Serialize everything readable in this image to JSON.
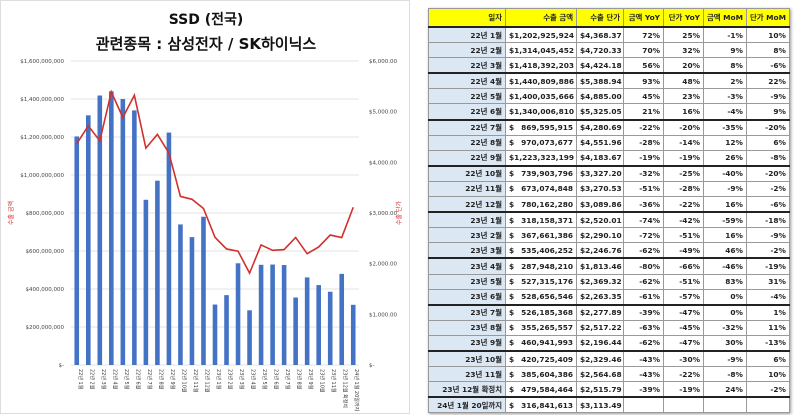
{
  "chart_data": {
    "type": "bar+line",
    "title": "SSD (전국)",
    "subtitle": "관련종목 : 삼성전자 / SK하이닉스",
    "ylabel_left": "수출 금액",
    "ylabel_right": "수출 단가",
    "ylim_left": [
      0,
      1600000000
    ],
    "ylim_right": [
      0,
      6000
    ],
    "left_ticks": [
      "$1,600,000,000",
      "$1,400,000,000",
      "$1,200,000,000",
      "$1,000,000,000",
      "$800,000,000",
      "$600,000,000",
      "$400,000,000",
      "$200,000,000",
      "$-"
    ],
    "right_ticks": [
      "$6,000.00",
      "$5,000.00",
      "$4,000.00",
      "$3,000.00",
      "$2,000.00",
      "$1,000.00",
      "$-"
    ],
    "categories": [
      "22년 1월",
      "22년 2월",
      "22년 3월",
      "22년 4월",
      "22년 5월",
      "22년 6월",
      "22년 7월",
      "22년 8월",
      "22년 9월",
      "22년 10월",
      "22년 11월",
      "22년 12월",
      "23년 1월",
      "23년 2월",
      "23년 3월",
      "23년 4월",
      "23년 5월",
      "23년 6월",
      "23년 7월",
      "23년 8월",
      "23년 9월",
      "23년 10월",
      "23년 11월",
      "23년 12월 확정치",
      "24년 1월 20일까지"
    ],
    "series": [
      {
        "name": "수출 금액",
        "type": "bar",
        "color": "#4472c4",
        "values": [
          1202925924,
          1314045452,
          1418392203,
          1440809886,
          1400035666,
          1340006810,
          869595915,
          970073677,
          1223323199,
          739903796,
          673074848,
          780162280,
          318158371,
          367661386,
          535406252,
          287948210,
          527315176,
          528656546,
          526185368,
          355265557,
          460941993,
          420725409,
          385604386,
          479584464,
          316841613
        ]
      },
      {
        "name": "수출 단가",
        "type": "line",
        "color": "#d0312d",
        "values": [
          4368.37,
          4720.33,
          4424.18,
          5388.94,
          4885.0,
          5325.05,
          4280.69,
          4551.96,
          4183.67,
          3327.2,
          3270.53,
          3089.86,
          2520.01,
          2290.1,
          2246.76,
          1813.46,
          2369.32,
          2263.35,
          2277.89,
          2517.22,
          2196.44,
          2329.46,
          2564.68,
          2515.79,
          3113.49
        ]
      }
    ]
  },
  "table": {
    "headers": [
      "일자",
      "수출 금액",
      "수출 단가",
      "금액 YoY",
      "단가 YoY",
      "금액 MoM",
      "단가 MoM"
    ],
    "rows": [
      [
        "22년 1월",
        "1,202,925,924",
        "4,368.37",
        "72%",
        "25%",
        "-1%",
        "10%"
      ],
      [
        "22년 2월",
        "1,314,045,452",
        "4,720.33",
        "70%",
        "32%",
        "9%",
        "8%"
      ],
      [
        "22년 3월",
        "1,418,392,203",
        "4,424.18",
        "56%",
        "20%",
        "8%",
        "-6%"
      ],
      [
        "22년 4월",
        "1,440,809,886",
        "5,388.94",
        "93%",
        "48%",
        "2%",
        "22%"
      ],
      [
        "22년 5월",
        "1,400,035,666",
        "4,885.00",
        "45%",
        "23%",
        "-3%",
        "-9%"
      ],
      [
        "22년 6월",
        "1,340,006,810",
        "5,325.05",
        "21%",
        "16%",
        "-4%",
        "9%"
      ],
      [
        "22년 7월",
        "869,595,915",
        "4,280.69",
        "-22%",
        "-20%",
        "-35%",
        "-20%"
      ],
      [
        "22년 8월",
        "970,073,677",
        "4,551.96",
        "-28%",
        "-14%",
        "12%",
        "6%"
      ],
      [
        "22년 9월",
        "1,223,323,199",
        "4,183.67",
        "-19%",
        "-19%",
        "26%",
        "-8%"
      ],
      [
        "22년 10월",
        "739,903,796",
        "3,327.20",
        "-32%",
        "-25%",
        "-40%",
        "-20%"
      ],
      [
        "22년 11월",
        "673,074,848",
        "3,270.53",
        "-51%",
        "-28%",
        "-9%",
        "-2%"
      ],
      [
        "22년 12월",
        "780,162,280",
        "3,089.86",
        "-36%",
        "-22%",
        "16%",
        "-6%"
      ],
      [
        "23년 1월",
        "318,158,371",
        "2,520.01",
        "-74%",
        "-42%",
        "-59%",
        "-18%"
      ],
      [
        "23년 2월",
        "367,661,386",
        "2,290.10",
        "-72%",
        "-51%",
        "16%",
        "-9%"
      ],
      [
        "23년 3월",
        "535,406,252",
        "2,246.76",
        "-62%",
        "-49%",
        "46%",
        "-2%"
      ],
      [
        "23년 4월",
        "287,948,210",
        "1,813.46",
        "-80%",
        "-66%",
        "-46%",
        "-19%"
      ],
      [
        "23년 5월",
        "527,315,176",
        "2,369.32",
        "-62%",
        "-51%",
        "83%",
        "31%"
      ],
      [
        "23년 6월",
        "528,656,546",
        "2,263.35",
        "-61%",
        "-57%",
        "0%",
        "-4%"
      ],
      [
        "23년 7월",
        "526,185,368",
        "2,277.89",
        "-39%",
        "-47%",
        "0%",
        "1%"
      ],
      [
        "23년 8월",
        "355,265,557",
        "2,517.22",
        "-63%",
        "-45%",
        "-32%",
        "11%"
      ],
      [
        "23년 9월",
        "460,941,993",
        "2,196.44",
        "-62%",
        "-47%",
        "30%",
        "-13%"
      ],
      [
        "23년 10월",
        "420,725,409",
        "2,329.46",
        "-43%",
        "-30%",
        "-9%",
        "6%"
      ],
      [
        "23년 11월",
        "385,604,386",
        "2,564.68",
        "-43%",
        "-22%",
        "-8%",
        "10%"
      ],
      [
        "23년 12월 확정치",
        "479,584,464",
        "2,515.79",
        "-39%",
        "-19%",
        "24%",
        "-2%"
      ],
      [
        "24년 1월 20일까지",
        "316,841,613",
        "3,113.49",
        "",
        "",
        "",
        ""
      ]
    ],
    "currency": "$"
  }
}
